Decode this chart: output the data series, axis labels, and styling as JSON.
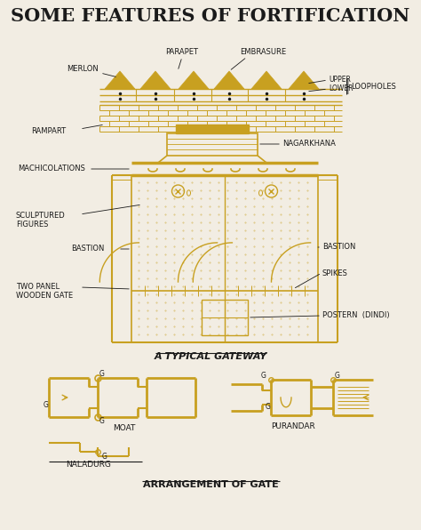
{
  "title": "SOME FEATURES OF FORTIFICATION",
  "bg_color": "#f2ede3",
  "gold_color": "#c8a020",
  "dark_color": "#1a1a1a",
  "gateway_label": "A TYPICAL GATEWAY",
  "arrangement_label": "ARRANGEMENT OF GATE",
  "labels": {
    "merlon": "MERLON",
    "parapet": "PARAPET",
    "embrasure": "EMBRASURE",
    "upper": "UPPER",
    "lower": "LOWER",
    "loopholes": "LOOPHOLES",
    "rampart": "RAMPART",
    "nagarkhana": "NAGARKHANA",
    "machicolations": "MACHICOLATIONS",
    "sculptured_figures": "SCULPTURED\nFIGURES",
    "bastion_l": "BASTION",
    "bastion_r": "BASTION",
    "two_panel": "TWO PANEL\nWOODEN GATE",
    "spikes": "SPIKES",
    "postern": "POSTERN  (DINDI)",
    "moat": "MOAT",
    "naladurg": "NALADURG",
    "purandar": "PURANDAR",
    "g": "G"
  }
}
